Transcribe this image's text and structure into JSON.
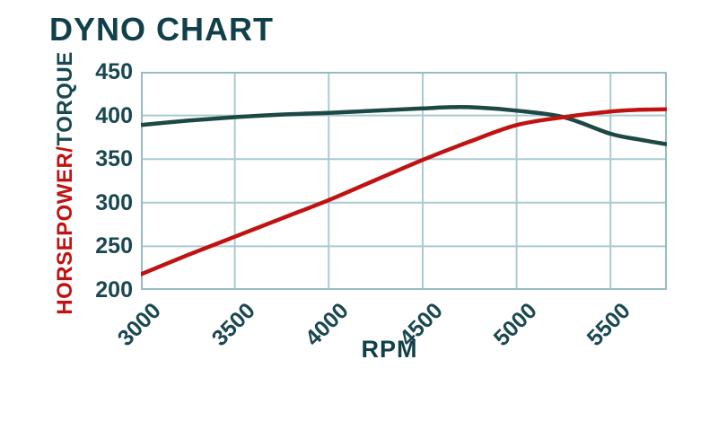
{
  "title": "DYNO CHART",
  "colors": {
    "background": "#ffffff",
    "title_text": "#11404a",
    "tick_text": "#1a4850",
    "horsepower_red": "#c11212",
    "torque_teal": "#1d4843",
    "grid_line": "#a9cbd1",
    "plot_border": "#96bcc2"
  },
  "chart_data": {
    "type": "line",
    "title": "DYNO CHART",
    "xlabel": "RPM",
    "ylabel": "HORSEPOWER/TORQUE",
    "ylabel_parts": {
      "horsepower": "HORSEPOWER",
      "separator": "/",
      "torque": "TORQUE"
    },
    "xlim": [
      3000,
      5800
    ],
    "ylim": [
      200,
      450
    ],
    "x_ticks": [
      3000,
      3500,
      4000,
      4500,
      5000,
      5500
    ],
    "y_ticks": [
      200,
      250,
      300,
      350,
      400,
      450
    ],
    "grid": true,
    "legend_position": "none",
    "series": [
      {
        "name": "Torque",
        "color": "#1d4843",
        "x": [
          3000,
          3250,
          3500,
          3750,
          4000,
          4250,
          4500,
          4650,
          4800,
          5000,
          5250,
          5500,
          5650,
          5800
        ],
        "values": [
          389,
          394,
          398,
          401,
          403,
          405.5,
          408,
          409.5,
          409,
          405.5,
          398,
          379,
          372.5,
          367
        ]
      },
      {
        "name": "Horsepower",
        "color": "#c11212",
        "x": [
          3000,
          3250,
          3500,
          3750,
          4000,
          4250,
          4500,
          4750,
          5000,
          5250,
          5500,
          5650,
          5800
        ],
        "values": [
          218,
          240,
          261,
          282,
          303,
          326,
          349,
          370,
          389,
          398,
          404.5,
          406.5,
          407
        ]
      }
    ]
  }
}
